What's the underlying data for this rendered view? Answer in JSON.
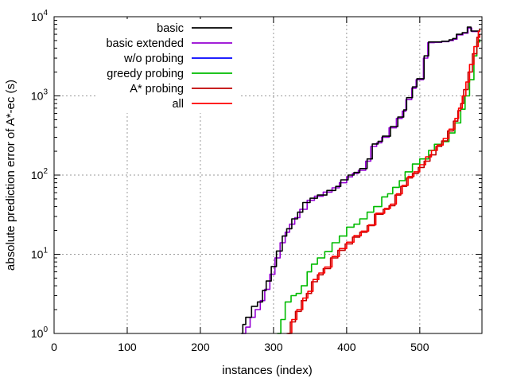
{
  "chart_data": {
    "type": "line",
    "xlabel": "instances (index)",
    "ylabel": "absolute prediction error of A*-ec (s)",
    "xlim": [
      0,
      585
    ],
    "ylim": [
      1,
      10000
    ],
    "yscale": "log",
    "grid": true,
    "legend_position": "top-left",
    "x_ticks": [
      0,
      100,
      200,
      300,
      400,
      500
    ],
    "y_ticks": [
      {
        "value": 1,
        "base": "10",
        "exp": "0"
      },
      {
        "value": 10,
        "base": "10",
        "exp": "1"
      },
      {
        "value": 100,
        "base": "10",
        "exp": "2"
      },
      {
        "value": 1000,
        "base": "10",
        "exp": "3"
      },
      {
        "value": 10000,
        "base": "10",
        "exp": "4"
      }
    ],
    "series": [
      {
        "name": "basic",
        "color": "#000000",
        "points": [
          [
            256,
            1.0
          ],
          [
            258,
            1.3
          ],
          [
            262,
            1.6
          ],
          [
            270,
            2.2
          ],
          [
            278,
            2.5
          ],
          [
            285,
            3.5
          ],
          [
            290,
            4.6
          ],
          [
            297,
            7.0
          ],
          [
            304,
            11
          ],
          [
            312,
            17
          ],
          [
            318,
            21
          ],
          [
            325,
            28
          ],
          [
            333,
            34
          ],
          [
            340,
            45
          ],
          [
            350,
            51
          ],
          [
            360,
            56
          ],
          [
            373,
            64
          ],
          [
            385,
            72
          ],
          [
            392,
            87
          ],
          [
            402,
            100
          ],
          [
            410,
            108
          ],
          [
            418,
            121
          ],
          [
            428,
            160
          ],
          [
            435,
            247
          ],
          [
            443,
            267
          ],
          [
            449,
            310
          ],
          [
            460,
            410
          ],
          [
            470,
            540
          ],
          [
            478,
            665
          ],
          [
            482,
            950
          ],
          [
            490,
            1300
          ],
          [
            496,
            1650
          ],
          [
            506,
            3200
          ],
          [
            512,
            4800
          ],
          [
            520,
            4800
          ],
          [
            530,
            4900
          ],
          [
            540,
            5100
          ],
          [
            545,
            5300
          ],
          [
            550,
            6000
          ],
          [
            558,
            6300
          ],
          [
            565,
            7400
          ],
          [
            570,
            6600
          ],
          [
            582,
            6800
          ]
        ]
      },
      {
        "name": "basic extended",
        "color": "#9400d3",
        "points": [
          [
            258,
            1.0
          ],
          [
            262,
            1.2
          ],
          [
            268,
            1.6
          ],
          [
            275,
            2.0
          ],
          [
            282,
            2.6
          ],
          [
            288,
            3.6
          ],
          [
            295,
            5.6
          ],
          [
            302,
            9.0
          ],
          [
            309,
            14
          ],
          [
            316,
            19
          ],
          [
            322,
            24
          ],
          [
            329,
            29
          ],
          [
            336,
            37
          ],
          [
            346,
            48
          ],
          [
            356,
            54
          ],
          [
            368,
            61
          ],
          [
            380,
            69
          ],
          [
            390,
            80
          ],
          [
            400,
            95
          ],
          [
            408,
            105
          ],
          [
            416,
            115
          ],
          [
            426,
            150
          ],
          [
            433,
            230
          ],
          [
            441,
            255
          ],
          [
            448,
            300
          ],
          [
            458,
            395
          ],
          [
            468,
            520
          ],
          [
            476,
            640
          ],
          [
            481,
            900
          ],
          [
            489,
            1250
          ],
          [
            495,
            1600
          ],
          [
            505,
            3000
          ],
          [
            511,
            4700
          ],
          [
            520,
            4750
          ],
          [
            530,
            4850
          ],
          [
            540,
            5000
          ],
          [
            546,
            5200
          ],
          [
            551,
            5900
          ],
          [
            559,
            6200
          ],
          [
            566,
            7200
          ],
          [
            571,
            6500
          ],
          [
            582,
            6700
          ]
        ]
      },
      {
        "name": "w/o probing",
        "color": "#0000ff",
        "points": []
      },
      {
        "name": "greedy probing",
        "color": "#00bb00",
        "points": [
          [
            305,
            1.0
          ],
          [
            310,
            1.5
          ],
          [
            316,
            2.5
          ],
          [
            324,
            3.0
          ],
          [
            331,
            3.2
          ],
          [
            338,
            4.0
          ],
          [
            346,
            6.0
          ],
          [
            352,
            7.5
          ],
          [
            360,
            9.0
          ],
          [
            370,
            10.8
          ],
          [
            380,
            14
          ],
          [
            390,
            17
          ],
          [
            400,
            22
          ],
          [
            410,
            24
          ],
          [
            418,
            28
          ],
          [
            428,
            34
          ],
          [
            437,
            40
          ],
          [
            448,
            53
          ],
          [
            456,
            58
          ],
          [
            463,
            70
          ],
          [
            472,
            85
          ],
          [
            480,
            110
          ],
          [
            490,
            138
          ],
          [
            500,
            160
          ],
          [
            512,
            205
          ],
          [
            520,
            245
          ],
          [
            530,
            265
          ],
          [
            540,
            340
          ],
          [
            548,
            455
          ],
          [
            556,
            680
          ],
          [
            562,
            1000
          ],
          [
            568,
            1600
          ],
          [
            574,
            3200
          ],
          [
            578,
            4800
          ],
          [
            582,
            5200
          ]
        ]
      },
      {
        "name": "A* probing",
        "color": "#c00000",
        "points": [
          [
            318,
            1.0
          ],
          [
            323,
            1.4
          ],
          [
            330,
            1.9
          ],
          [
            338,
            2.6
          ],
          [
            345,
            3.2
          ],
          [
            352,
            4.5
          ],
          [
            360,
            5.5
          ],
          [
            368,
            6.6
          ],
          [
            378,
            9.0
          ],
          [
            388,
            11.2
          ],
          [
            398,
            13.5
          ],
          [
            408,
            16.5
          ],
          [
            418,
            19
          ],
          [
            428,
            23
          ],
          [
            438,
            32
          ],
          [
            450,
            37
          ],
          [
            458,
            41
          ],
          [
            466,
            56
          ],
          [
            474,
            72
          ],
          [
            482,
            92
          ],
          [
            490,
            105
          ],
          [
            498,
            125
          ],
          [
            506,
            150
          ],
          [
            514,
            180
          ],
          [
            522,
            230
          ],
          [
            530,
            270
          ],
          [
            538,
            360
          ],
          [
            546,
            480
          ],
          [
            552,
            650
          ],
          [
            556,
            800
          ],
          [
            560,
            1200
          ],
          [
            566,
            2000
          ],
          [
            572,
            3400
          ],
          [
            578,
            5500
          ],
          [
            582,
            6000
          ]
        ]
      },
      {
        "name": "all",
        "color": "#ff0000",
        "points": [
          [
            320,
            1.0
          ],
          [
            325,
            1.5
          ],
          [
            332,
            2.0
          ],
          [
            340,
            2.8
          ],
          [
            347,
            3.4
          ],
          [
            354,
            4.8
          ],
          [
            362,
            5.8
          ],
          [
            370,
            6.9
          ],
          [
            380,
            9.4
          ],
          [
            390,
            11.8
          ],
          [
            400,
            14.2
          ],
          [
            410,
            17.2
          ],
          [
            420,
            19.6
          ],
          [
            430,
            23.5
          ],
          [
            440,
            33
          ],
          [
            452,
            38
          ],
          [
            460,
            43
          ],
          [
            468,
            58
          ],
          [
            476,
            74
          ],
          [
            484,
            96
          ],
          [
            492,
            110
          ],
          [
            500,
            135
          ],
          [
            508,
            170
          ],
          [
            516,
            205
          ],
          [
            524,
            240
          ],
          [
            532,
            290
          ],
          [
            540,
            380
          ],
          [
            548,
            520
          ],
          [
            553,
            700
          ],
          [
            558,
            1000
          ],
          [
            563,
            1500
          ],
          [
            568,
            2500
          ],
          [
            574,
            4200
          ],
          [
            580,
            6500
          ],
          [
            582,
            7000
          ]
        ]
      }
    ]
  }
}
